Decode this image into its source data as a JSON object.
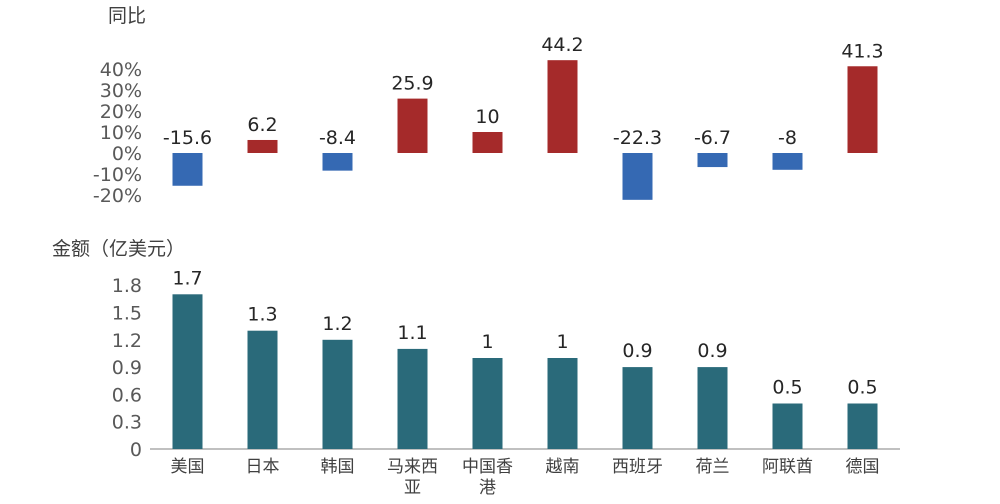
{
  "chart_data": [
    {
      "type": "bar",
      "ylabel": "同比",
      "categories": [
        "美国",
        "日本",
        "韩国",
        "马来西亚",
        "中国香港",
        "越南",
        "西班牙",
        "荷兰",
        "阿联酋",
        "德国"
      ],
      "values": [
        -15.6,
        6.2,
        -8.4,
        25.9,
        10,
        44.2,
        -22.3,
        -6.7,
        -8,
        41.3
      ],
      "data_labels": [
        "-15.6",
        "6.2",
        "-8.4",
        "25.9",
        "10",
        "44.2",
        "-22.3",
        "-6.7",
        "-8",
        "41.3"
      ],
      "yticks": [
        "40%",
        "30%",
        "20%",
        "10%",
        "0%",
        "-10%",
        "-20%"
      ],
      "ytick_values": [
        40,
        30,
        20,
        10,
        0,
        -10,
        -20
      ],
      "ylim": [
        -22.3,
        44.2
      ],
      "colors": {
        "positive": "#A52A2A",
        "negative": "#3569B3"
      },
      "grid": false
    },
    {
      "type": "bar",
      "ylabel": "金额（亿美元）",
      "categories": [
        "美国",
        "日本",
        "韩国",
        "马来西亚",
        "中国香港",
        "越南",
        "西班牙",
        "荷兰",
        "阿联酋",
        "德国"
      ],
      "category_lines": [
        [
          "美国"
        ],
        [
          "日本"
        ],
        [
          "韩国"
        ],
        [
          "马来西",
          "亚"
        ],
        [
          "中国香",
          "港"
        ],
        [
          "越南"
        ],
        [
          "西班牙"
        ],
        [
          "荷兰"
        ],
        [
          "阿联酋"
        ],
        [
          "德国"
        ]
      ],
      "values": [
        1.7,
        1.3,
        1.2,
        1.1,
        1,
        1,
        0.9,
        0.9,
        0.5,
        0.5
      ],
      "data_labels": [
        "1.7",
        "1.3",
        "1.2",
        "1.1",
        "1",
        "1",
        "0.9",
        "0.9",
        "0.5",
        "0.5"
      ],
      "yticks": [
        "1.8",
        "1.5",
        "1.2",
        "0.9",
        "0.6",
        "0.3",
        "0"
      ],
      "ytick_values": [
        1.8,
        1.5,
        1.2,
        0.9,
        0.6,
        0.3,
        0
      ],
      "ylim": [
        0,
        1.8
      ],
      "colors": {
        "bar": "#2A6A7A",
        "axis": "#808080"
      },
      "grid": false
    }
  ]
}
